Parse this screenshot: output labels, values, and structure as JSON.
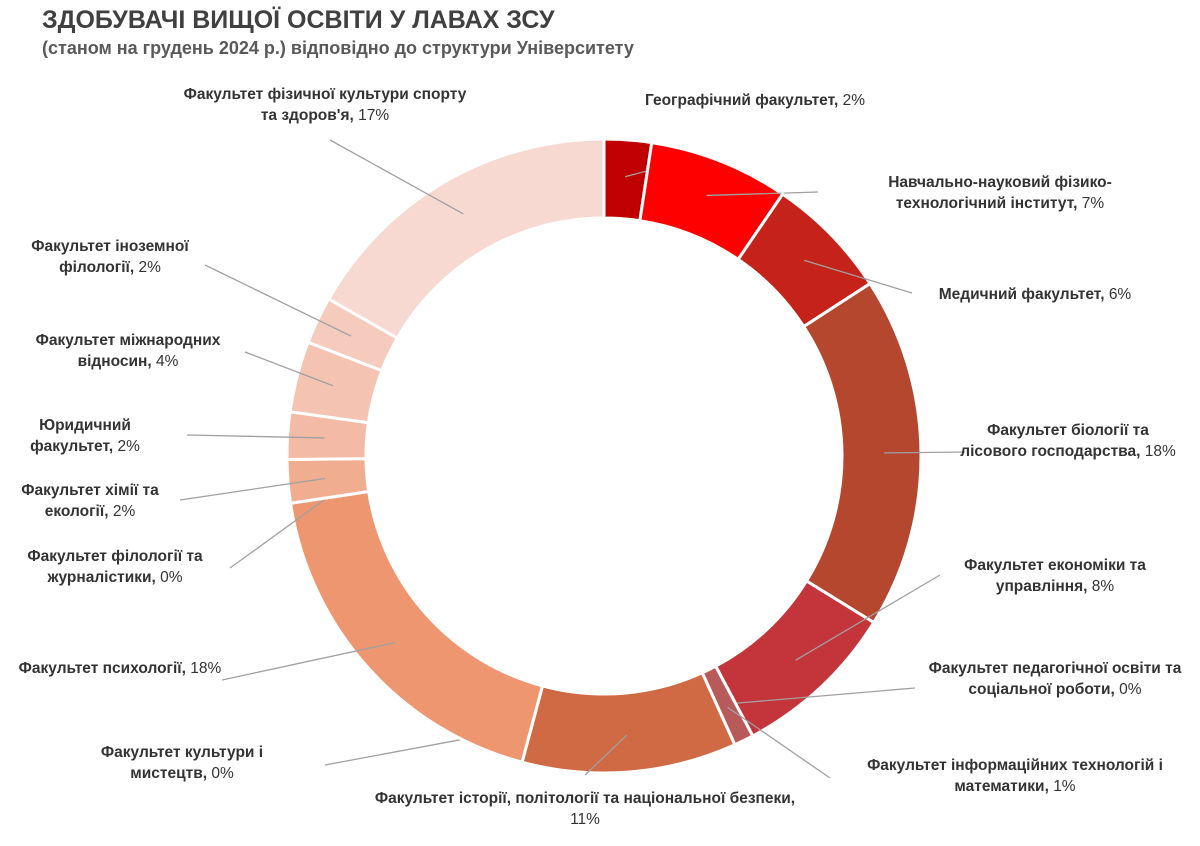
{
  "chart_data": {
    "type": "donut",
    "title": "ЗДОБУВАЧІ ВИЩОЇ ОСВІТИ У ЛАВАХ ЗСУ",
    "subtitle": "(станом на грудень 2024 р.) відповідно до структури Університету",
    "categories": [
      "Географічний факультет,",
      "Навчально-науковий фізико-технологічний інститут,",
      "Медичний факультет,",
      "Факультет біології та лісового господарства,",
      "Факультет економіки та управління,",
      "Факультет педагогічної освіти та соціальної роботи,",
      "Факультет інформаційних технологій і математики,",
      "Факультет історії, політології та національної безпеки,",
      "Факультет культури і мистецтв,",
      "Факультет психології,",
      "Факультет філології та журналістики,",
      "Факультет хімії та екології,",
      "Юридичний факультет,",
      "Факультет міжнародних відносин,",
      "Факультет іноземної філології,",
      "Факультет фізичної культури спорту та здоров'я,"
    ],
    "values": [
      2.4,
      7.1,
      6.3,
      17.9,
      8.4,
      0,
      1.0,
      10.9,
      0,
      18.4,
      0,
      2.2,
      2.4,
      3.6,
      2.4,
      16.7
    ],
    "value_labels": [
      "2%",
      "7%",
      "6%",
      "18%",
      "8%",
      "0%",
      "1%",
      "11%",
      "0%",
      "18%",
      "0%",
      "2%",
      "2%",
      "4%",
      "2%",
      "17%"
    ],
    "colors": [
      "#c00000",
      "#ff0000",
      "#c5221a",
      "#b5472f",
      "#c3353a",
      "#b03a3a",
      "#b95a5a",
      "#d06a45",
      "#d97050",
      "#ee9670",
      "#efa585",
      "#f0ad90",
      "#f3baa5",
      "#f4c3b2",
      "#f5cbbd",
      "#f8d9d1"
    ]
  }
}
